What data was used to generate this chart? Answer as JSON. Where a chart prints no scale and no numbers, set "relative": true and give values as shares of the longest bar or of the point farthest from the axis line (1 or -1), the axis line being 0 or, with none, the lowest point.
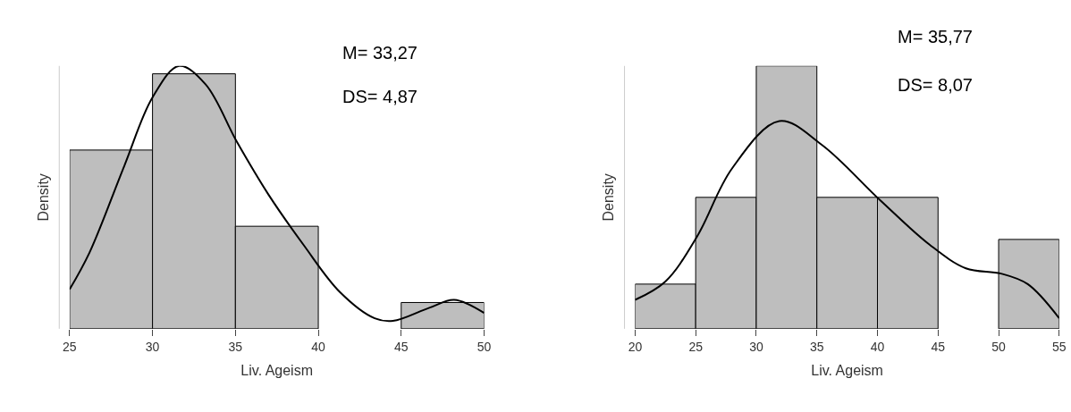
{
  "chart_data": [
    {
      "type": "histogram",
      "relative": true,
      "xlabel": "Liv. Ageism",
      "ylabel": "Density",
      "xlim": [
        25,
        50
      ],
      "xticks": [
        25,
        30,
        35,
        40,
        45,
        50
      ],
      "annotations": [
        "M= 33,27",
        "DS= 4,87"
      ],
      "series": [
        {
          "color": "#bebebe",
          "bins": [
            25,
            30,
            35,
            40,
            45,
            50
          ],
          "values": [
            0.68,
            0.97,
            0.39,
            0,
            0.1
          ]
        },
        {
          "type": "line",
          "color": "#000000",
          "x": [
            25,
            26.2,
            28.3,
            30,
            31.6,
            33.2,
            35.1,
            37,
            39.1,
            41.3,
            43.4,
            44.5,
            46.7,
            48.2,
            50
          ],
          "values": [
            0.15,
            0.29,
            0.62,
            0.88,
            1,
            0.93,
            0.71,
            0.51,
            0.32,
            0.14,
            0.04,
            0.03,
            0.08,
            0.11,
            0.06
          ]
        }
      ]
    },
    {
      "type": "histogram",
      "relative": true,
      "xlabel": "Liv. Ageism",
      "ylabel": "Density",
      "xlim": [
        20,
        55
      ],
      "xticks": [
        20,
        25,
        30,
        35,
        40,
        45,
        50,
        55
      ],
      "annotations": [
        "M= 35,77",
        "DS= 8,07"
      ],
      "series": [
        {
          "color": "#bebebe",
          "bins": [
            20,
            25,
            30,
            35,
            40,
            45,
            50,
            55
          ],
          "values": [
            0.17,
            0.5,
            1,
            0.5,
            0.5,
            0,
            0.34
          ]
        },
        {
          "type": "line",
          "color": "#000000",
          "x": [
            20,
            22.5,
            25.1,
            28,
            31.9,
            35.4,
            40.2,
            44.3,
            47.3,
            50.2,
            52.4,
            55
          ],
          "values": [
            0.11,
            0.18,
            0.35,
            0.61,
            0.79,
            0.7,
            0.49,
            0.32,
            0.23,
            0.21,
            0.17,
            0.04
          ]
        }
      ]
    }
  ]
}
